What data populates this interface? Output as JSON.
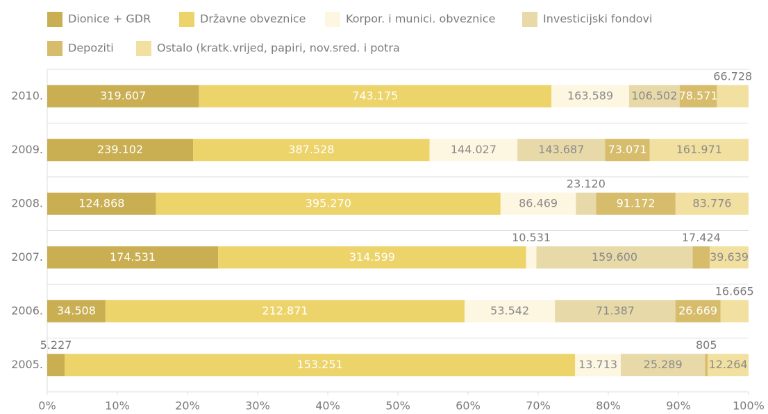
{
  "chart_data": {
    "type": "bar",
    "orientation": "horizontal",
    "stacking": "percent",
    "categories": [
      "2010.",
      "2009.",
      "2008.",
      "2007.",
      "2006.",
      "2005."
    ],
    "series": [
      {
        "name": "Dionice + GDR",
        "color": "#c9ae52",
        "values": [
          319607,
          239102,
          124868,
          174531,
          34508,
          5227
        ],
        "value_labels": [
          "319.607",
          "239.102",
          "124.868",
          "174.531",
          "34.508",
          "5.227"
        ]
      },
      {
        "name": "Državne obveznice",
        "color": "#ecd46b",
        "values": [
          743175,
          387528,
          395270,
          314599,
          212871,
          153251
        ],
        "value_labels": [
          "743.175",
          "387.528",
          "395.270",
          "314.599",
          "212.871",
          "153.251"
        ]
      },
      {
        "name": "Korpor. i munici. obveznice",
        "color": "#fdf6e1",
        "values": [
          163589,
          144027,
          86469,
          10531,
          53542,
          13713
        ],
        "value_labels": [
          "163.589",
          "144.027",
          "86.469",
          "10.531",
          "53.542",
          "13.713"
        ]
      },
      {
        "name": "Investicijski fondovi",
        "color": "#e8d9a9",
        "values": [
          106502,
          143687,
          23120,
          159600,
          71387,
          25289
        ],
        "value_labels": [
          "106.502",
          "143.687",
          "23.120",
          "159.600",
          "71.387",
          "25.289"
        ]
      },
      {
        "name": "Depoziti",
        "color": "#d6bc6b",
        "values": [
          78571,
          73071,
          91172,
          17424,
          26669,
          805
        ],
        "value_labels": [
          "78.571",
          "73.071",
          "91.172",
          "17.424",
          "26.669",
          "805"
        ]
      },
      {
        "name": "Ostalo (kratk.vrijed, papiri, nov.sred. i potra",
        "color": "#f2e0a0",
        "values": [
          66728,
          161971,
          83776,
          39639,
          16665,
          12264
        ],
        "value_labels": [
          "66.728",
          "161.971",
          "83.776",
          "39.639",
          "16.665",
          "12.264"
        ]
      }
    ],
    "xlim": [
      0,
      100
    ],
    "xticks": [
      {
        "value": 0,
        "label": "0%"
      },
      {
        "value": 10,
        "label": "10%"
      },
      {
        "value": 20,
        "label": "20%"
      },
      {
        "value": 30,
        "label": "30%"
      },
      {
        "value": 40,
        "label": "40%"
      },
      {
        "value": 50,
        "label": "50%"
      },
      {
        "value": 60,
        "label": "60%"
      },
      {
        "value": 70,
        "label": "70%"
      },
      {
        "value": 80,
        "label": "80%"
      },
      {
        "value": 90,
        "label": "90%"
      },
      {
        "value": 100,
        "label": "100%"
      }
    ],
    "legend": "top"
  }
}
